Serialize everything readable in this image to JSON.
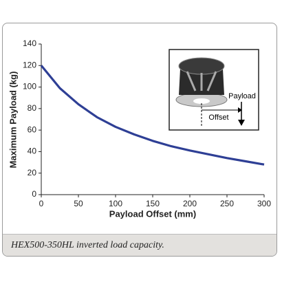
{
  "chart_data": {
    "type": "line",
    "x_label": "Payload Offset (mm)",
    "y_label": "Maximum Payload (kg)",
    "x": [
      0,
      25,
      50,
      75,
      100,
      125,
      150,
      175,
      200,
      225,
      250,
      275,
      300
    ],
    "series": [
      {
        "color": "#2e3f95",
        "values": [
          120,
          99,
          84,
          72,
          63,
          56,
          50,
          45,
          41,
          37.5,
          34,
          31,
          28
        ]
      }
    ],
    "xlim": [
      0,
      300
    ],
    "xticks": [
      0,
      50,
      100,
      150,
      200,
      250,
      300
    ],
    "ylim": [
      0,
      140
    ],
    "yticks": [
      0,
      20,
      40,
      60,
      80,
      100,
      120,
      140
    ],
    "annotations": [
      "Payload",
      "Offset"
    ]
  },
  "caption": "HEX500-350HL inverted load capacity."
}
